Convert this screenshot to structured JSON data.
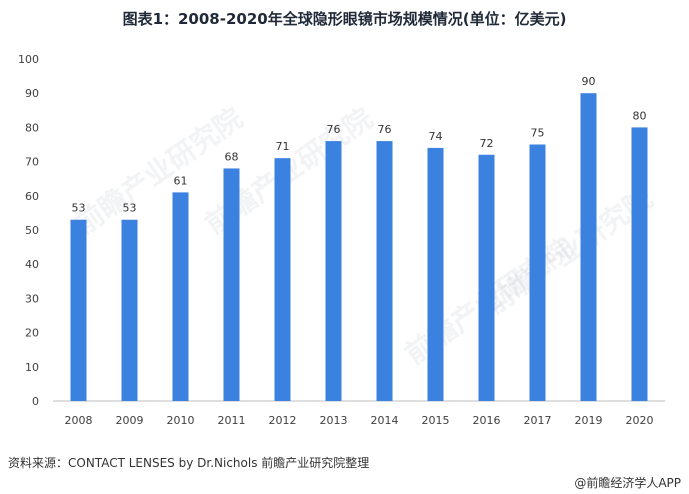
{
  "title": "图表1：2008-2020年全球隐形眼镜市场规模情况(单位：亿美元)",
  "source": "资料来源：CONTACT LENSES by Dr.Nichols 前瞻产业研究院整理",
  "brand": "@前瞻经济学人APP",
  "watermark": "前瞻产业研究院",
  "colors": {
    "bar": "#3b82e0",
    "axis": "#bfbfbf"
  },
  "chart_data": {
    "type": "bar",
    "title": "图表1：2008-2020年全球隐形眼镜市场规模情况(单位：亿美元)",
    "categories": [
      "2008",
      "2009",
      "2010",
      "2011",
      "2012",
      "2013",
      "2014",
      "2015",
      "2016",
      "2017",
      "2019",
      "2020"
    ],
    "values": [
      53,
      53,
      61,
      68,
      71,
      76,
      76,
      74,
      72,
      75,
      90,
      80
    ],
    "ylim": [
      0,
      100
    ],
    "yticks": [
      0,
      10,
      20,
      30,
      40,
      50,
      60,
      70,
      80,
      90,
      100
    ],
    "grid": false,
    "data_labels": true
  }
}
